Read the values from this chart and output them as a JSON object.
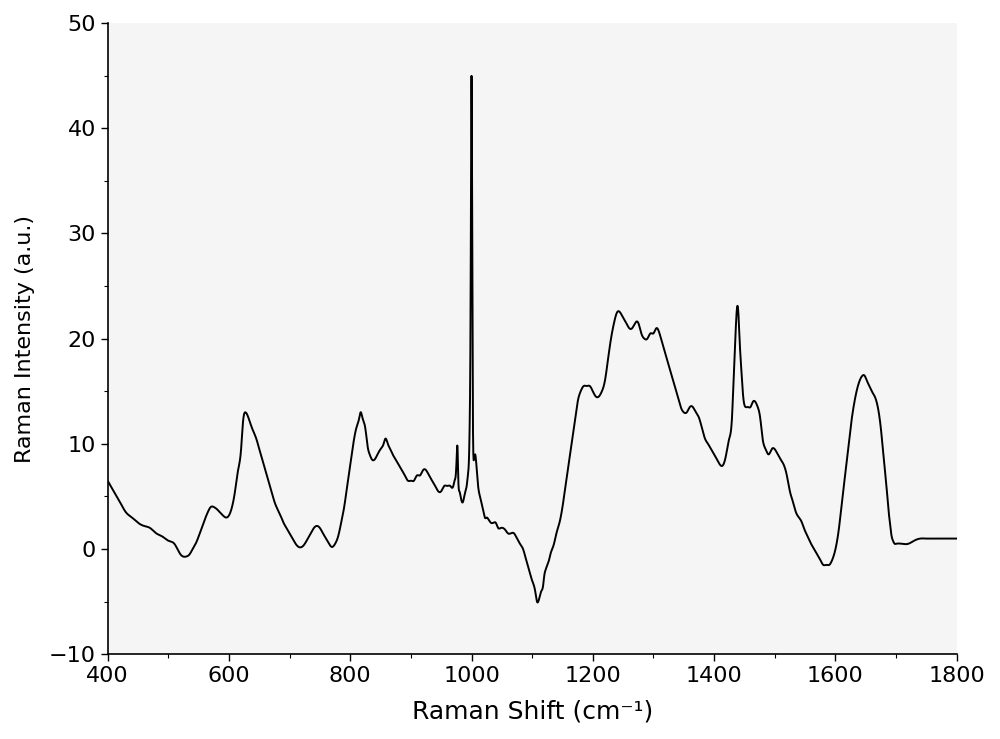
{
  "title": "",
  "xlabel": "Raman Shift (cm⁻¹)",
  "ylabel": "Raman Intensity (a.u.)",
  "xlim": [
    400,
    1800
  ],
  "ylim": [
    -10,
    50
  ],
  "xticks": [
    400,
    600,
    800,
    1000,
    1200,
    1400,
    1600,
    1800
  ],
  "yticks": [
    -10,
    0,
    10,
    20,
    30,
    40,
    50
  ],
  "line_color": "#000000",
  "line_width": 1.4,
  "background_color": "#f5f5f5",
  "xlabel_fontsize": 18,
  "ylabel_fontsize": 16,
  "tick_fontsize": 16,
  "keypoints": [
    [
      400,
      6.5
    ],
    [
      410,
      5.5
    ],
    [
      420,
      4.5
    ],
    [
      430,
      3.5
    ],
    [
      440,
      3.0
    ],
    [
      450,
      2.5
    ],
    [
      460,
      2.2
    ],
    [
      470,
      2.0
    ],
    [
      480,
      1.5
    ],
    [
      490,
      1.2
    ],
    [
      500,
      0.8
    ],
    [
      510,
      0.5
    ],
    [
      520,
      -0.5
    ],
    [
      530,
      -0.7
    ],
    [
      535,
      -0.5
    ],
    [
      540,
      0.0
    ],
    [
      545,
      0.5
    ],
    [
      550,
      1.2
    ],
    [
      555,
      2.0
    ],
    [
      560,
      2.8
    ],
    [
      565,
      3.5
    ],
    [
      570,
      4.0
    ],
    [
      575,
      4.0
    ],
    [
      580,
      3.8
    ],
    [
      585,
      3.5
    ],
    [
      590,
      3.2
    ],
    [
      595,
      3.0
    ],
    [
      600,
      3.2
    ],
    [
      605,
      4.0
    ],
    [
      610,
      5.5
    ],
    [
      615,
      7.5
    ],
    [
      620,
      9.5
    ],
    [
      623,
      12.0
    ],
    [
      627,
      13.0
    ],
    [
      632,
      12.5
    ],
    [
      638,
      11.5
    ],
    [
      645,
      10.5
    ],
    [
      650,
      9.5
    ],
    [
      655,
      8.5
    ],
    [
      660,
      7.5
    ],
    [
      665,
      6.5
    ],
    [
      670,
      5.5
    ],
    [
      675,
      4.5
    ],
    [
      680,
      3.8
    ],
    [
      685,
      3.2
    ],
    [
      690,
      2.5
    ],
    [
      695,
      2.0
    ],
    [
      700,
      1.5
    ],
    [
      705,
      1.0
    ],
    [
      710,
      0.5
    ],
    [
      715,
      0.2
    ],
    [
      720,
      0.2
    ],
    [
      725,
      0.5
    ],
    [
      730,
      1.0
    ],
    [
      735,
      1.5
    ],
    [
      740,
      2.0
    ],
    [
      745,
      2.2
    ],
    [
      750,
      2.0
    ],
    [
      755,
      1.5
    ],
    [
      760,
      1.0
    ],
    [
      765,
      0.5
    ],
    [
      770,
      0.2
    ],
    [
      775,
      0.5
    ],
    [
      780,
      1.2
    ],
    [
      785,
      2.5
    ],
    [
      790,
      4.0
    ],
    [
      795,
      6.0
    ],
    [
      800,
      8.0
    ],
    [
      805,
      10.0
    ],
    [
      810,
      11.5
    ],
    [
      815,
      12.5
    ],
    [
      817,
      13.0
    ],
    [
      820,
      12.5
    ],
    [
      823,
      12.0
    ],
    [
      826,
      11.0
    ],
    [
      828,
      10.0
    ],
    [
      832,
      9.0
    ],
    [
      836,
      8.5
    ],
    [
      840,
      8.5
    ],
    [
      845,
      9.0
    ],
    [
      850,
      9.5
    ],
    [
      855,
      10.0
    ],
    [
      858,
      10.5
    ],
    [
      862,
      10.0
    ],
    [
      866,
      9.5
    ],
    [
      870,
      9.0
    ],
    [
      875,
      8.5
    ],
    [
      880,
      8.0
    ],
    [
      885,
      7.5
    ],
    [
      890,
      7.0
    ],
    [
      895,
      6.5
    ],
    [
      900,
      6.5
    ],
    [
      905,
      6.5
    ],
    [
      910,
      7.0
    ],
    [
      915,
      7.0
    ],
    [
      920,
      7.5
    ],
    [
      925,
      7.5
    ],
    [
      930,
      7.0
    ],
    [
      935,
      6.5
    ],
    [
      940,
      6.0
    ],
    [
      945,
      5.5
    ],
    [
      950,
      5.5
    ],
    [
      955,
      6.0
    ],
    [
      960,
      6.0
    ],
    [
      965,
      6.0
    ],
    [
      970,
      6.0
    ],
    [
      972,
      6.5
    ],
    [
      975,
      8.0
    ],
    [
      977,
      9.5
    ],
    [
      978,
      7.0
    ],
    [
      980,
      5.5
    ],
    [
      982,
      5.0
    ],
    [
      984,
      4.5
    ],
    [
      986,
      4.5
    ],
    [
      988,
      5.0
    ],
    [
      990,
      5.5
    ],
    [
      992,
      6.0
    ],
    [
      994,
      7.0
    ],
    [
      996,
      9.0
    ],
    [
      997,
      12.0
    ],
    [
      998,
      18.0
    ],
    [
      999,
      32.0
    ],
    [
      1000,
      45.0
    ],
    [
      1001,
      32.0
    ],
    [
      1002,
      15.0
    ],
    [
      1003,
      9.0
    ],
    [
      1004,
      8.5
    ],
    [
      1006,
      9.0
    ],
    [
      1008,
      8.0
    ],
    [
      1010,
      6.5
    ],
    [
      1012,
      5.5
    ],
    [
      1014,
      5.0
    ],
    [
      1016,
      4.5
    ],
    [
      1018,
      4.0
    ],
    [
      1020,
      3.5
    ],
    [
      1022,
      3.0
    ],
    [
      1025,
      3.0
    ],
    [
      1028,
      2.8
    ],
    [
      1032,
      2.5
    ],
    [
      1036,
      2.5
    ],
    [
      1040,
      2.5
    ],
    [
      1044,
      2.0
    ],
    [
      1048,
      2.0
    ],
    [
      1052,
      2.0
    ],
    [
      1056,
      1.8
    ],
    [
      1060,
      1.5
    ],
    [
      1065,
      1.5
    ],
    [
      1070,
      1.5
    ],
    [
      1075,
      1.0
    ],
    [
      1080,
      0.5
    ],
    [
      1085,
      0.0
    ],
    [
      1090,
      -1.0
    ],
    [
      1095,
      -2.0
    ],
    [
      1100,
      -3.0
    ],
    [
      1105,
      -4.0
    ],
    [
      1108,
      -5.0
    ],
    [
      1110,
      -5.0
    ],
    [
      1115,
      -4.0
    ],
    [
      1118,
      -3.5
    ],
    [
      1120,
      -2.5
    ],
    [
      1122,
      -2.0
    ],
    [
      1125,
      -1.5
    ],
    [
      1128,
      -1.0
    ],
    [
      1130,
      -0.5
    ],
    [
      1133,
      0.0
    ],
    [
      1136,
      0.5
    ],
    [
      1140,
      1.5
    ],
    [
      1145,
      2.5
    ],
    [
      1150,
      4.0
    ],
    [
      1155,
      6.0
    ],
    [
      1160,
      8.0
    ],
    [
      1165,
      10.0
    ],
    [
      1170,
      12.0
    ],
    [
      1175,
      14.0
    ],
    [
      1180,
      15.0
    ],
    [
      1185,
      15.5
    ],
    [
      1190,
      15.5
    ],
    [
      1195,
      15.5
    ],
    [
      1200,
      15.0
    ],
    [
      1205,
      14.5
    ],
    [
      1210,
      14.5
    ],
    [
      1215,
      15.0
    ],
    [
      1220,
      16.0
    ],
    [
      1225,
      18.0
    ],
    [
      1230,
      20.0
    ],
    [
      1235,
      21.5
    ],
    [
      1240,
      22.5
    ],
    [
      1245,
      22.5
    ],
    [
      1250,
      22.0
    ],
    [
      1255,
      21.5
    ],
    [
      1260,
      21.0
    ],
    [
      1265,
      21.0
    ],
    [
      1270,
      21.5
    ],
    [
      1275,
      21.5
    ],
    [
      1280,
      20.5
    ],
    [
      1285,
      20.0
    ],
    [
      1290,
      20.0
    ],
    [
      1295,
      20.5
    ],
    [
      1300,
      20.5
    ],
    [
      1305,
      21.0
    ],
    [
      1310,
      20.5
    ],
    [
      1315,
      19.5
    ],
    [
      1320,
      18.5
    ],
    [
      1325,
      17.5
    ],
    [
      1330,
      16.5
    ],
    [
      1335,
      15.5
    ],
    [
      1340,
      14.5
    ],
    [
      1345,
      13.5
    ],
    [
      1350,
      13.0
    ],
    [
      1355,
      13.0
    ],
    [
      1360,
      13.5
    ],
    [
      1365,
      13.5
    ],
    [
      1370,
      13.0
    ],
    [
      1375,
      12.5
    ],
    [
      1380,
      11.5
    ],
    [
      1385,
      10.5
    ],
    [
      1390,
      10.0
    ],
    [
      1395,
      9.5
    ],
    [
      1400,
      9.0
    ],
    [
      1405,
      8.5
    ],
    [
      1410,
      8.0
    ],
    [
      1415,
      8.0
    ],
    [
      1420,
      9.0
    ],
    [
      1425,
      10.5
    ],
    [
      1430,
      13.0
    ],
    [
      1432,
      16.0
    ],
    [
      1435,
      20.0
    ],
    [
      1438,
      23.0
    ],
    [
      1440,
      22.5
    ],
    [
      1442,
      20.0
    ],
    [
      1445,
      17.0
    ],
    [
      1448,
      14.5
    ],
    [
      1452,
      13.5
    ],
    [
      1456,
      13.5
    ],
    [
      1460,
      13.5
    ],
    [
      1464,
      14.0
    ],
    [
      1468,
      14.0
    ],
    [
      1472,
      13.5
    ],
    [
      1476,
      12.5
    ],
    [
      1480,
      10.5
    ],
    [
      1485,
      9.5
    ],
    [
      1490,
      9.0
    ],
    [
      1495,
      9.5
    ],
    [
      1500,
      9.5
    ],
    [
      1505,
      9.0
    ],
    [
      1510,
      8.5
    ],
    [
      1515,
      8.0
    ],
    [
      1520,
      7.0
    ],
    [
      1525,
      5.5
    ],
    [
      1530,
      4.5
    ],
    [
      1535,
      3.5
    ],
    [
      1540,
      3.0
    ],
    [
      1545,
      2.5
    ],
    [
      1548,
      2.0
    ],
    [
      1552,
      1.5
    ],
    [
      1556,
      1.0
    ],
    [
      1560,
      0.5
    ],
    [
      1565,
      0.0
    ],
    [
      1570,
      -0.5
    ],
    [
      1575,
      -1.0
    ],
    [
      1580,
      -1.5
    ],
    [
      1585,
      -1.5
    ],
    [
      1590,
      -1.5
    ],
    [
      1595,
      -1.0
    ],
    [
      1598,
      -0.5
    ],
    [
      1602,
      0.5
    ],
    [
      1606,
      2.0
    ],
    [
      1610,
      4.0
    ],
    [
      1615,
      6.5
    ],
    [
      1620,
      9.0
    ],
    [
      1625,
      11.5
    ],
    [
      1630,
      13.5
    ],
    [
      1635,
      15.0
    ],
    [
      1640,
      16.0
    ],
    [
      1645,
      16.5
    ],
    [
      1648,
      16.5
    ],
    [
      1652,
      16.0
    ],
    [
      1656,
      15.5
    ],
    [
      1660,
      15.0
    ],
    [
      1665,
      14.5
    ],
    [
      1670,
      13.5
    ],
    [
      1675,
      11.5
    ],
    [
      1680,
      8.5
    ],
    [
      1685,
      5.5
    ],
    [
      1688,
      3.5
    ],
    [
      1690,
      2.5
    ],
    [
      1692,
      1.5
    ],
    [
      1695,
      0.8
    ],
    [
      1698,
      0.5
    ],
    [
      1700,
      0.5
    ],
    [
      1710,
      0.5
    ],
    [
      1720,
      0.5
    ],
    [
      1730,
      0.8
    ],
    [
      1740,
      1.0
    ],
    [
      1750,
      1.0
    ],
    [
      1760,
      1.0
    ],
    [
      1770,
      1.0
    ],
    [
      1780,
      1.0
    ],
    [
      1790,
      1.0
    ],
    [
      1800,
      1.0
    ]
  ]
}
